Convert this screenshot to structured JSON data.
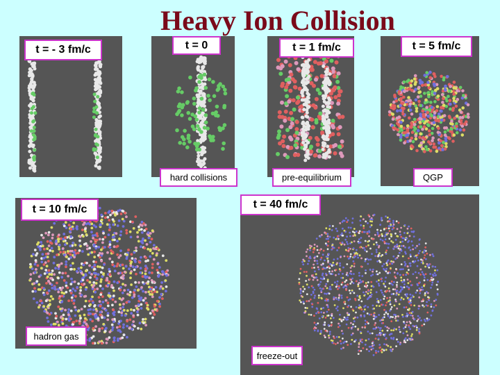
{
  "title": "Heavy Ion Collision",
  "panels": [
    {
      "time": "t = - 3 fm/c"
    },
    {
      "time": "t = 0",
      "caption": "hard collisions"
    },
    {
      "time": "t = 1 fm/c",
      "caption": "pre-equilibrium"
    },
    {
      "time": "t = 5 fm/c",
      "caption": "QGP"
    },
    {
      "time": "t = 10 fm/c",
      "caption": "hadron gas"
    },
    {
      "time": "t = 40 fm/c",
      "caption": "freeze-out"
    }
  ]
}
